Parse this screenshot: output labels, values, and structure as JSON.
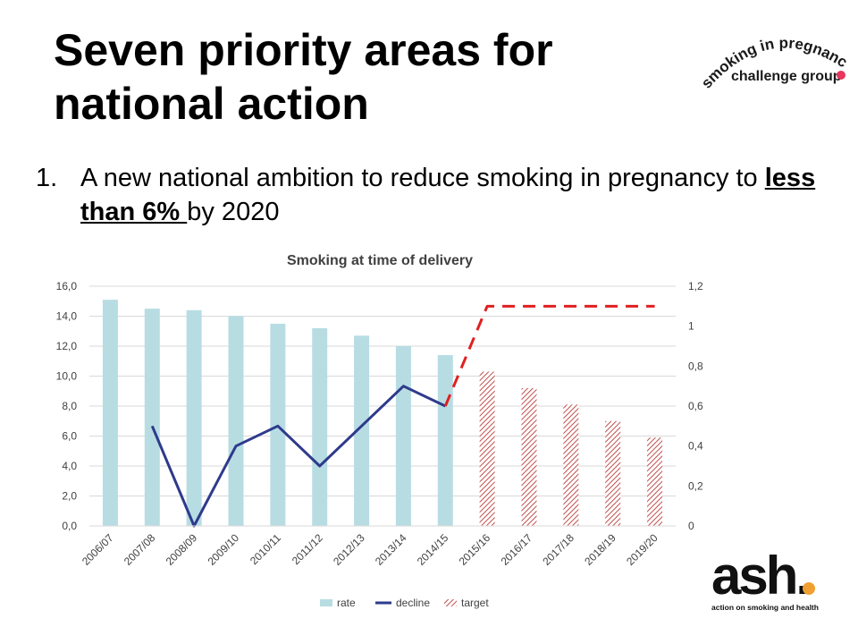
{
  "slide": {
    "title_line1": "Seven priority areas for",
    "title_line2": "national action",
    "bullet_number": "1.",
    "bullet_text_pre": "A new national ambition to reduce smoking in pregnancy to ",
    "bullet_text_em": "less than 6% ",
    "bullet_text_post": "by 2020"
  },
  "logos": {
    "spg_line1": "smoking in pregnancy",
    "spg_line2": "challenge group",
    "ash_name": "ash.",
    "ash_tagline": "action on smoking and health"
  },
  "colors": {
    "rate": "#b7dde3",
    "decline": "#2e3a8c",
    "target": "#c0504d",
    "dashed_line": "#e02020",
    "accent_dot": "#e8365d",
    "ash_dot": "#f0a030"
  },
  "chart_data": {
    "type": "bar",
    "title": "Smoking at time of delivery",
    "categories": [
      "2006/07",
      "2007/08",
      "2008/09",
      "2009/10",
      "2010/11",
      "2011/12",
      "2012/13",
      "2013/14",
      "2014/15",
      "2015/16",
      "2016/17",
      "2017/18",
      "2018/19",
      "2019/20"
    ],
    "series": [
      {
        "name": "rate",
        "type": "bar",
        "axis": "left",
        "values": [
          15.1,
          14.5,
          14.4,
          14.0,
          13.5,
          13.2,
          12.7,
          12.0,
          11.4,
          null,
          null,
          null,
          null,
          null
        ]
      },
      {
        "name": "decline",
        "type": "line",
        "axis": "right",
        "values": [
          null,
          0.5,
          0.0,
          0.4,
          0.5,
          0.3,
          0.5,
          0.7,
          0.6,
          null,
          null,
          null,
          null,
          null
        ]
      },
      {
        "name": "target",
        "type": "bar-hatched",
        "axis": "left",
        "values": [
          null,
          null,
          null,
          null,
          null,
          null,
          null,
          null,
          null,
          10.3,
          9.2,
          8.1,
          7.0,
          5.9
        ]
      },
      {
        "type": "line-dashed",
        "axis": "right",
        "values": [
          null,
          null,
          null,
          null,
          null,
          null,
          null,
          null,
          0.6,
          1.1,
          1.1,
          1.1,
          1.1,
          1.1
        ]
      }
    ],
    "y_left": {
      "min": 0,
      "max": 16,
      "ticks": [
        "0,0",
        "2,0",
        "4,0",
        "6,0",
        "8,0",
        "10,0",
        "12,0",
        "14,0",
        "16,0"
      ]
    },
    "y_right": {
      "min": 0,
      "max": 1.2,
      "ticks": [
        "0",
        "0,2",
        "0,4",
        "0,6",
        "0,8",
        "1",
        "1,2"
      ]
    },
    "grid": true,
    "legend": {
      "position": "bottom",
      "items": [
        "rate",
        "decline",
        "target"
      ]
    }
  }
}
